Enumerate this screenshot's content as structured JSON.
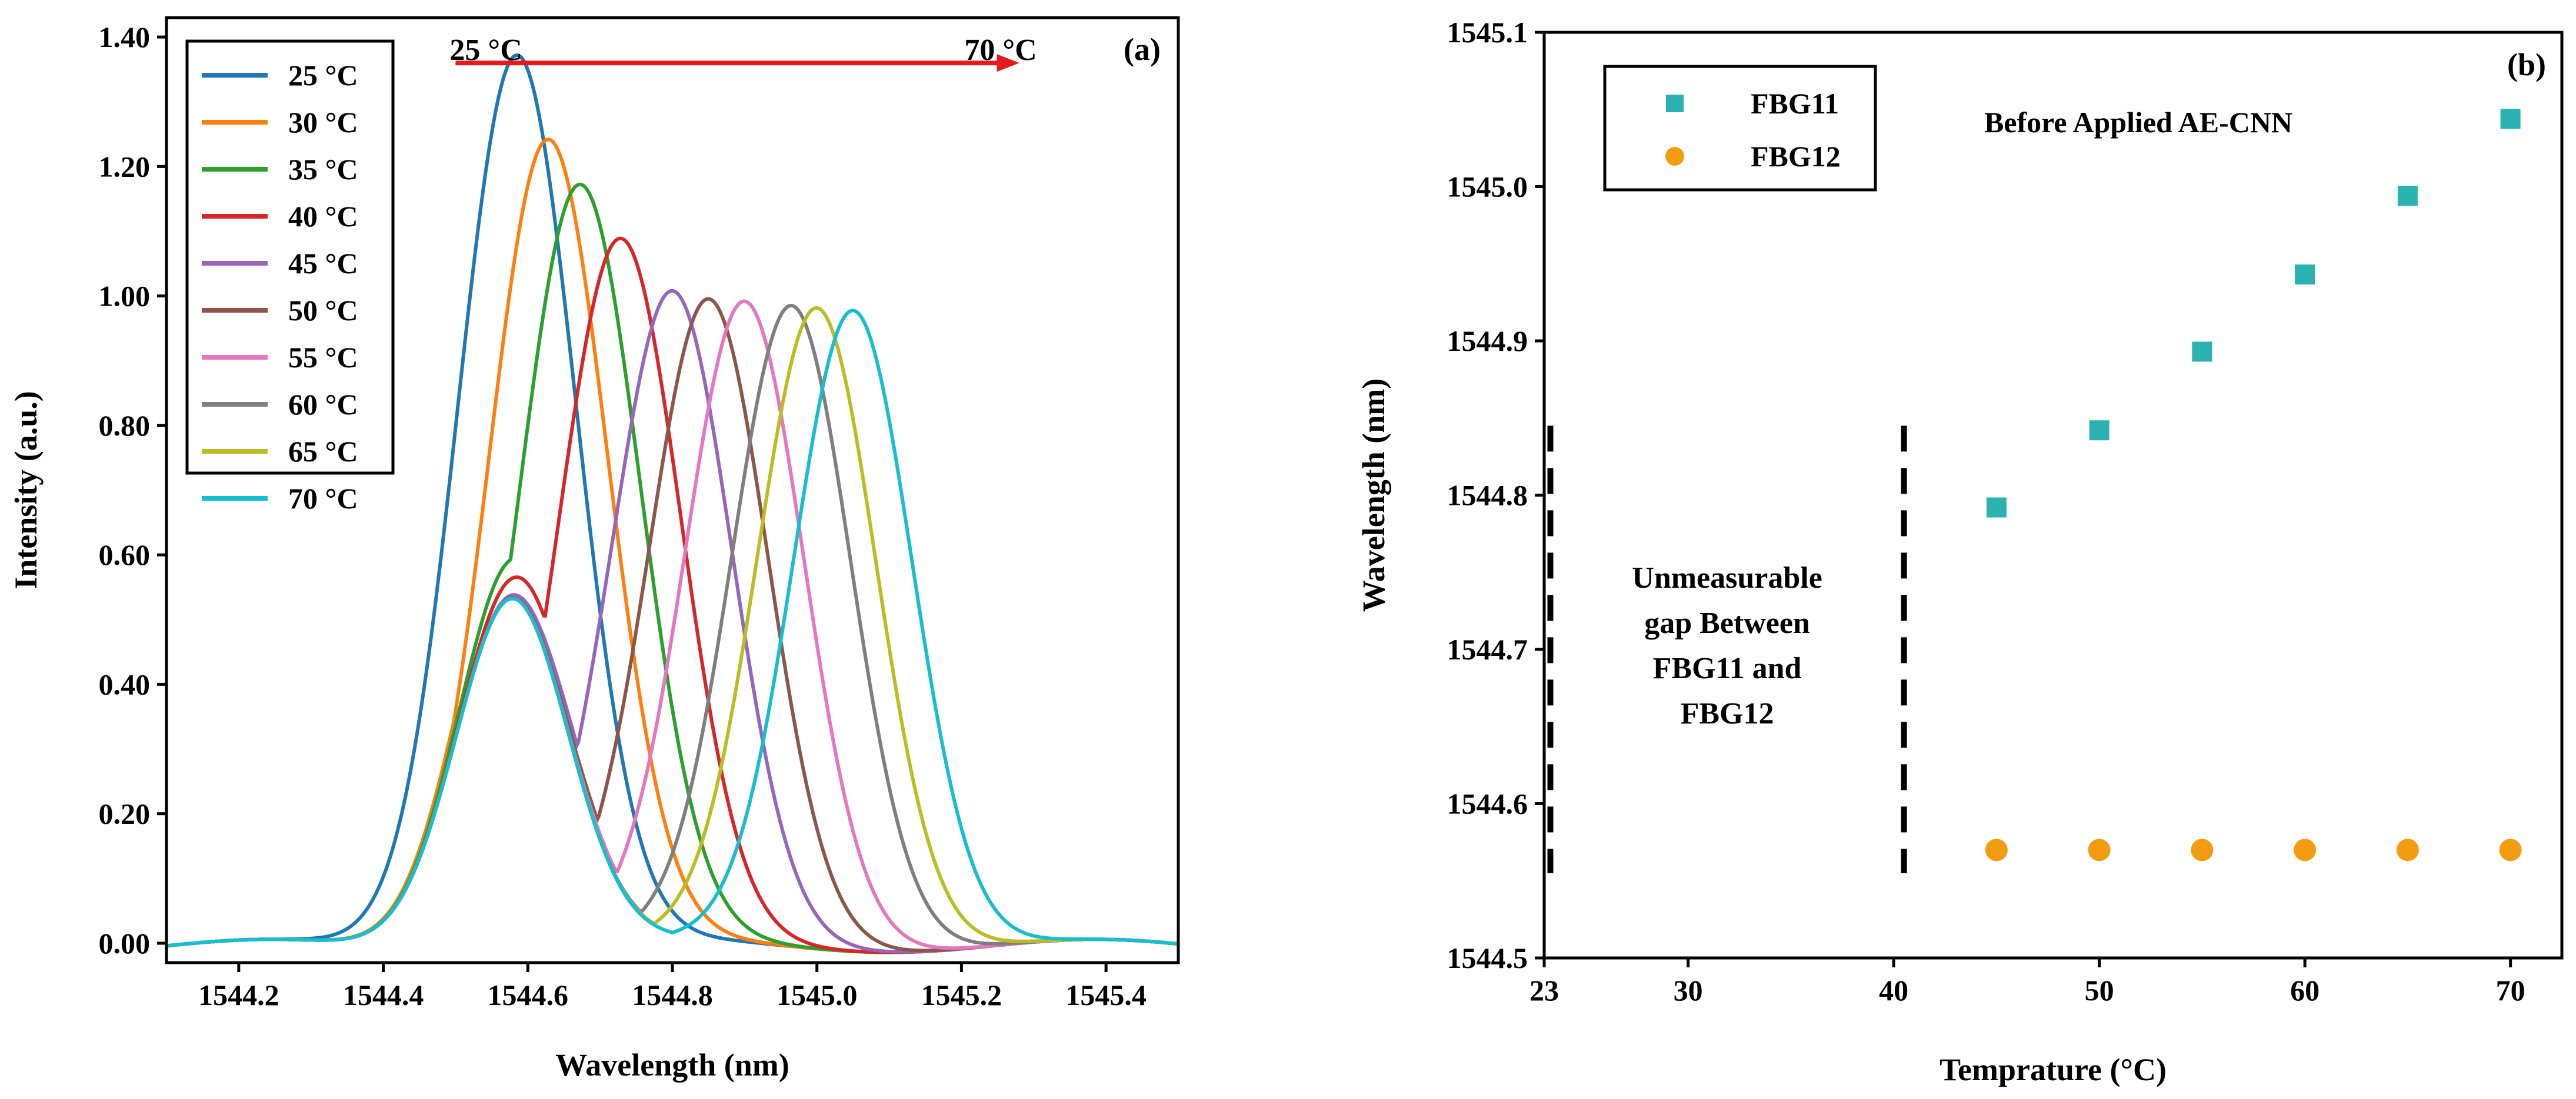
{
  "chart_data": [
    {
      "type": "line",
      "panel_label": "(a)",
      "xlabel": "Wavelength  (nm)",
      "ylabel": "Intensity (a.u.)",
      "xlim": [
        1544.1,
        1545.5
      ],
      "ylim": [
        -0.03,
        1.43
      ],
      "xticks": [
        1544.2,
        1544.4,
        1544.6,
        1544.8,
        1545.0,
        1545.2,
        1545.4
      ],
      "xtick_labels": [
        "1544.2",
        "1544.4",
        "1544.6",
        "1544.8",
        "1545.0",
        "1545.2",
        "1545.4"
      ],
      "yticks": [
        0.0,
        0.2,
        0.4,
        0.6,
        0.8,
        1.0,
        1.2,
        1.4
      ],
      "ytick_labels": [
        "0.00",
        "0.20",
        "0.40",
        "0.60",
        "0.80",
        "1.00",
        "1.20",
        "1.40"
      ],
      "annotation": {
        "from_label": "25 °C",
        "to_label": "70 °C",
        "arrow_from_x": 1544.5,
        "arrow_to_x": 1545.28,
        "arrow_y": 1.36,
        "arrow_color": "#e41a1c"
      },
      "legend": {
        "location": "top-left"
      },
      "series": [
        {
          "name": "25 °C",
          "color": "#1f77b4",
          "peak": 1544.585,
          "amplitude": 1.3
        },
        {
          "name": "30 °C",
          "color": "#ff7f0e",
          "peak": 1544.63,
          "amplitude": 1.18
        },
        {
          "name": "35 °C",
          "color": "#2ca02c",
          "peak": 1544.675,
          "amplitude": 1.13
        },
        {
          "name": "40 °C",
          "color": "#d62728",
          "peak": 1544.73,
          "amplitude": 1.07
        },
        {
          "name": "45 °C",
          "color": "#9467bd",
          "peak": 1544.8,
          "amplitude": 1.0
        },
        {
          "name": "50 °C",
          "color": "#8c564b",
          "peak": 1544.85,
          "amplitude": 0.99
        },
        {
          "name": "55 °C",
          "color": "#e377c2",
          "peak": 1544.9,
          "amplitude": 0.99
        },
        {
          "name": "60 °C",
          "color": "#7f7f7f",
          "peak": 1544.965,
          "amplitude": 0.99
        },
        {
          "name": "65 °C",
          "color": "#bcbd22",
          "peak": 1545.0,
          "amplitude": 0.99
        },
        {
          "name": "70 °C",
          "color": "#17becf",
          "peak": 1545.05,
          "amplitude": 0.99
        }
      ]
    },
    {
      "type": "scatter",
      "panel_label": "(b)",
      "xlabel": "Temprature (°C)",
      "ylabel": "Wavelength  (nm)",
      "xlim": [
        23,
        72.5
      ],
      "ylim": [
        1544.5,
        1545.1
      ],
      "xticks": [
        23,
        30,
        40,
        50,
        60,
        70
      ],
      "xtick_labels": [
        "23",
        "30",
        "40",
        "50",
        "60",
        "70"
      ],
      "yticks": [
        1544.5,
        1544.6,
        1544.7,
        1544.8,
        1544.9,
        1545.0,
        1545.1
      ],
      "ytick_labels": [
        "1544.5",
        "1544.6",
        "1544.7",
        "1544.8",
        "1544.9",
        "1545.0",
        "1545.1"
      ],
      "title_annotation": "Before Applied AE-CNN",
      "gap_annotation": [
        "Unmeasurable",
        "gap Between",
        "FBG11 and",
        "FBG12"
      ],
      "gap_bounds_x": [
        23.3,
        40.5
      ],
      "gap_bounds_y": [
        1544.555,
        1544.845
      ],
      "legend": {
        "location": "top-left"
      },
      "series": [
        {
          "name": "FBG11",
          "marker": "square",
          "color": "#2ab3b0",
          "x": [
            45,
            50,
            55,
            60,
            65,
            70
          ],
          "y": [
            1544.792,
            1544.842,
            1544.893,
            1544.943,
            1544.994,
            1545.044
          ]
        },
        {
          "name": "FBG12",
          "marker": "circle",
          "color": "#f39c12",
          "x": [
            45,
            50,
            55,
            60,
            65,
            70
          ],
          "y": [
            1544.57,
            1544.57,
            1544.57,
            1544.57,
            1544.57,
            1544.57
          ]
        }
      ]
    }
  ]
}
